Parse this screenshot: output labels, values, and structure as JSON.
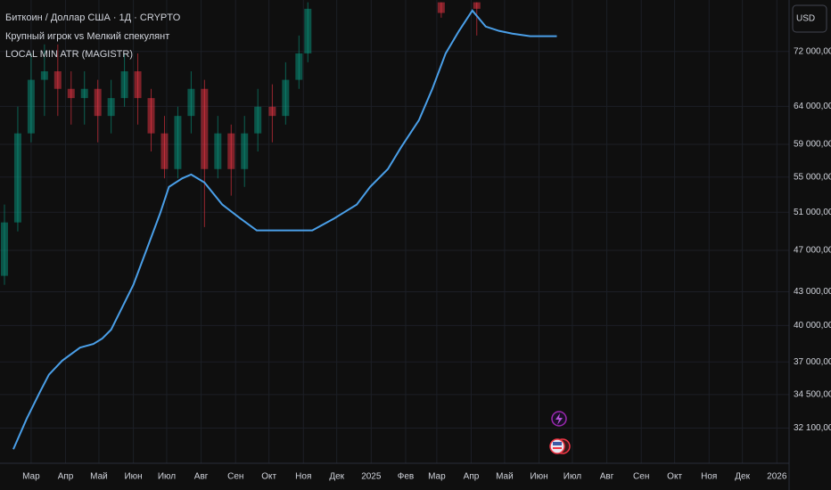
{
  "chart_data": {
    "type": "candlestick",
    "title": "Биткоин / Доллар США · 1Д · CRYPTO",
    "subtitle": "Крупный игрок vs Мелкий спекулянт",
    "currency_button": "USD",
    "log_scale": true,
    "grid": true,
    "xlim": [
      -28,
      682
    ],
    "ylim": [
      29770,
      80400
    ],
    "xticks": [
      {
        "value": 0,
        "label": "Мар"
      },
      {
        "value": 31,
        "label": "Апр"
      },
      {
        "value": 61,
        "label": "Май"
      },
      {
        "value": 92,
        "label": "Июн"
      },
      {
        "value": 122,
        "label": "Июл"
      },
      {
        "value": 153,
        "label": "Авг"
      },
      {
        "value": 184,
        "label": "Сен"
      },
      {
        "value": 214,
        "label": "Окт"
      },
      {
        "value": 245,
        "label": "Ноя"
      },
      {
        "value": 275,
        "label": "Дек"
      },
      {
        "value": 306,
        "label": "2025"
      },
      {
        "value": 337,
        "label": "Фев"
      },
      {
        "value": 365,
        "label": "Мар"
      },
      {
        "value": 396,
        "label": "Апр"
      },
      {
        "value": 426,
        "label": "Май"
      },
      {
        "value": 457,
        "label": "Июн"
      },
      {
        "value": 487,
        "label": "Июл"
      },
      {
        "value": 518,
        "label": "Авг"
      },
      {
        "value": 549,
        "label": "Сен"
      },
      {
        "value": 579,
        "label": "Окт"
      },
      {
        "value": 610,
        "label": "Ноя"
      },
      {
        "value": 640,
        "label": "Дек"
      },
      {
        "value": 671,
        "label": "2026"
      }
    ],
    "yticks": [
      {
        "value": 72000,
        "label": "72 000,00"
      },
      {
        "value": 64000,
        "label": "64 000,00"
      },
      {
        "value": 59000,
        "label": "59 000,00"
      },
      {
        "value": 55000,
        "label": "55 000,00"
      },
      {
        "value": 51000,
        "label": "51 000,00"
      },
      {
        "value": 47000,
        "label": "47 000,00"
      },
      {
        "value": 43000,
        "label": "43 000,00"
      },
      {
        "value": 40000,
        "label": "40 000,00"
      },
      {
        "value": 37000,
        "label": "37 000,00"
      },
      {
        "value": 34500,
        "label": "34 500,00"
      },
      {
        "value": 32100,
        "label": "32 100,00"
      }
    ],
    "up_color": "#089981",
    "down_color": "#f23645",
    "candles": {
      "x": [
        -24,
        -12,
        0,
        12,
        24,
        36,
        48,
        60,
        72,
        84,
        96,
        108,
        120,
        132,
        144,
        156,
        168,
        180,
        192,
        204,
        217,
        229,
        241,
        249,
        369,
        401
      ],
      "open": [
        44500,
        49900,
        60400,
        67750,
        69000,
        66450,
        65150,
        66450,
        62700,
        65150,
        69000,
        65150,
        60400,
        55950,
        62700,
        66450,
        55950,
        60400,
        55950,
        60400,
        63950,
        62700,
        67750,
        71700,
        80000,
        80000
      ],
      "high": [
        51850,
        63950,
        71700,
        73100,
        73100,
        69000,
        69000,
        67750,
        67750,
        71700,
        71700,
        66450,
        62700,
        63950,
        69000,
        67750,
        62700,
        61550,
        62700,
        66450,
        67100,
        70350,
        74500,
        80000,
        80000,
        80000
      ],
      "low": [
        43650,
        48950,
        59250,
        62700,
        62700,
        61550,
        61550,
        59250,
        60400,
        63950,
        61550,
        58100,
        54850,
        54850,
        60400,
        49400,
        54850,
        52850,
        53850,
        58100,
        59250,
        61550,
        66450,
        70350,
        77400,
        74500
      ],
      "close": [
        49900,
        60400,
        67750,
        69000,
        66450,
        65150,
        66450,
        62700,
        65150,
        69000,
        65150,
        60400,
        55950,
        62700,
        66450,
        55950,
        60400,
        55950,
        60400,
        63950,
        62700,
        67750,
        71700,
        78900,
        78200,
        78900
      ]
    },
    "series": [
      {
        "name": "LOCAL MIN ATR (MAGISTR)",
        "color": "#4a9fe8",
        "x": [
          -16,
          -4,
          8,
          16,
          28,
          44,
          56,
          64,
          72,
          80,
          92,
          104,
          116,
          124,
          136,
          144,
          156,
          172,
          188,
          203,
          253,
          273,
          293,
          305,
          321,
          333,
          349,
          361,
          373,
          385,
          397,
          409,
          421,
          433,
          449,
          473
        ],
        "values": [
          30680,
          32750,
          34700,
          36000,
          37100,
          38150,
          38450,
          38900,
          39650,
          41200,
          43650,
          47100,
          50850,
          53850,
          54850,
          55300,
          54350,
          51850,
          50350,
          49050,
          49050,
          50350,
          51850,
          53850,
          55950,
          58650,
          62150,
          66450,
          71700,
          75250,
          78600,
          75950,
          75250,
          74800,
          74400,
          74400
        ]
      }
    ]
  }
}
